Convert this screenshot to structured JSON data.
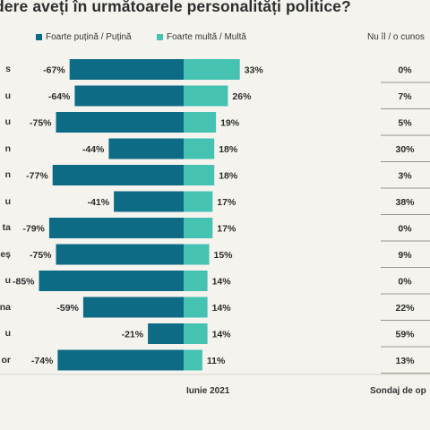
{
  "title": "dere aveți în următoarele personalități politice?",
  "legend": {
    "negative_label": "Foarte puțină / Puțină",
    "positive_label": "Foarte multă / Multă",
    "unknown_label": "Nu îl / o cunos"
  },
  "colors": {
    "negative": "#0e6b86",
    "positive": "#45c2b2",
    "divider": "#9a958c"
  },
  "footer": {
    "date": "Iunie 2021",
    "source": "Sondaj de op"
  },
  "row_names": [
    "s",
    "u",
    "u",
    "n",
    "n",
    "u",
    "ta",
    "eș",
    "u",
    "na",
    "u",
    "or"
  ],
  "chart_data": {
    "type": "bar",
    "series": [
      {
        "name": "Foarte puțină / Puțină",
        "values": [
          -67,
          -64,
          -75,
          -44,
          -77,
          -41,
          -79,
          -75,
          -85,
          -59,
          -21,
          -74
        ]
      },
      {
        "name": "Foarte multă / Multă",
        "values": [
          33,
          26,
          19,
          18,
          18,
          17,
          17,
          15,
          14,
          14,
          14,
          11
        ]
      },
      {
        "name": "Nu îl / o cunos",
        "values": [
          0,
          7,
          5,
          30,
          3,
          38,
          0,
          9,
          0,
          22,
          59,
          13
        ]
      }
    ],
    "value_labels": {
      "negative": [
        "-67%",
        "-64%",
        "-75%",
        "-44%",
        "-77%",
        "-41%",
        "-79%",
        "-75%",
        "-85%",
        "-59%",
        "-21%",
        "-74%"
      ],
      "positive": [
        "33%",
        "26%",
        "19%",
        "18%",
        "18%",
        "17%",
        "17%",
        "15%",
        "14%",
        "14%",
        "14%",
        "11%"
      ],
      "unknown": [
        "0%",
        "7%",
        "5%",
        "30%",
        "3%",
        "38%",
        "0%",
        "9%",
        "0%",
        "22%",
        "59%",
        "13%"
      ]
    }
  }
}
